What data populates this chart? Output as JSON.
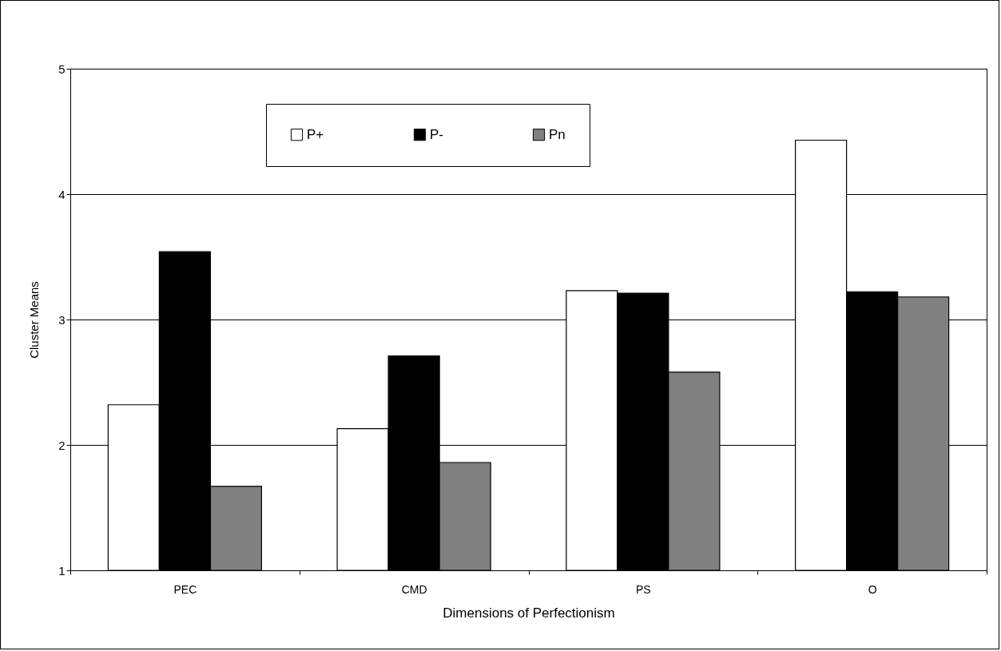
{
  "chart_data": {
    "type": "bar",
    "xlabel": "Dimensions of Perfectionism",
    "ylabel": "Cluster Means",
    "categories": [
      "PEC",
      "CMD",
      "PS",
      "O"
    ],
    "series": [
      {
        "name": "P+",
        "color": "#ffffff",
        "values": [
          2.32,
          2.13,
          3.23,
          4.43
        ]
      },
      {
        "name": "P-",
        "color": "#000000",
        "values": [
          3.54,
          2.71,
          3.21,
          3.22
        ]
      },
      {
        "name": "Pn",
        "color": "#808080",
        "values": [
          1.67,
          1.86,
          2.58,
          3.18
        ]
      }
    ],
    "ylim": [
      1,
      5
    ],
    "yticks": [
      1,
      2,
      3,
      4,
      5
    ],
    "grid": "y",
    "legend": "top"
  }
}
